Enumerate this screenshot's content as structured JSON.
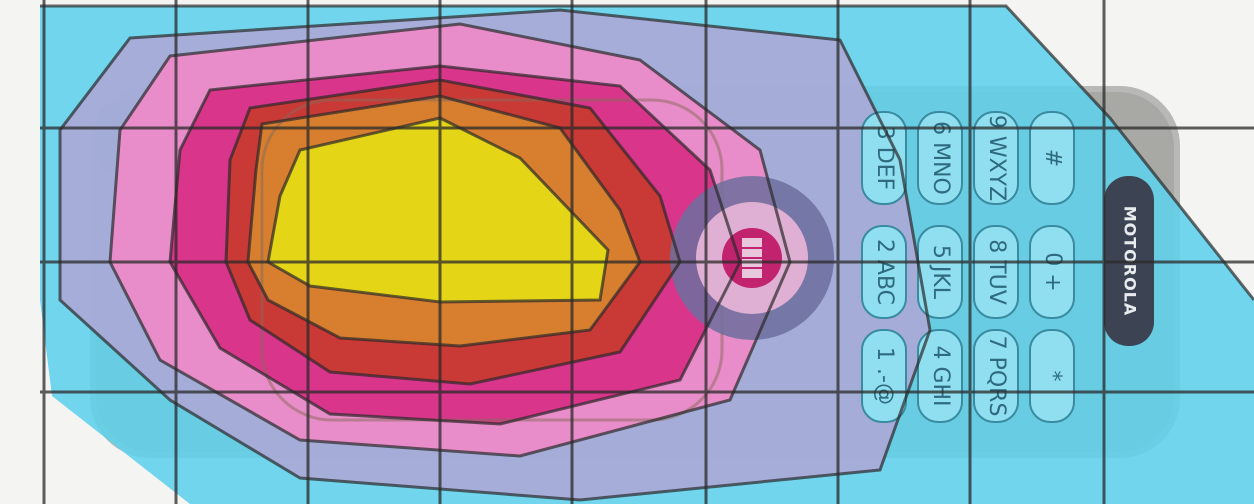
{
  "phone": {
    "brand": "MOTOROLA",
    "keys": [
      {
        "digit": "3",
        "letters": "DEF"
      },
      {
        "digit": "6",
        "letters": "MNO"
      },
      {
        "digit": "9",
        "letters": "WXYZ"
      },
      {
        "digit": "#",
        "letters": ""
      },
      {
        "digit": "2",
        "letters": "ABC"
      },
      {
        "digit": "5",
        "letters": "JKL"
      },
      {
        "digit": "8",
        "letters": "TUV"
      },
      {
        "digit": "0",
        "letters": "+"
      },
      {
        "digit": "1",
        "letters": ".-@"
      },
      {
        "digit": "4",
        "letters": "GHI"
      },
      {
        "digit": "7",
        "letters": "PQRS"
      },
      {
        "digit": "*",
        "letters": ""
      }
    ]
  },
  "colors": {
    "background": "#f4f4f2",
    "outer_band": "#5fd0ec",
    "lavender_band": "#a9a9d6",
    "light_pink_band": "#ef8ac8",
    "magenta_band": "#d62e86",
    "red_band": "#c83a2e",
    "orange_band": "#d8862e",
    "core": "#e6da16",
    "grid_line": "#2a2a2a"
  }
}
